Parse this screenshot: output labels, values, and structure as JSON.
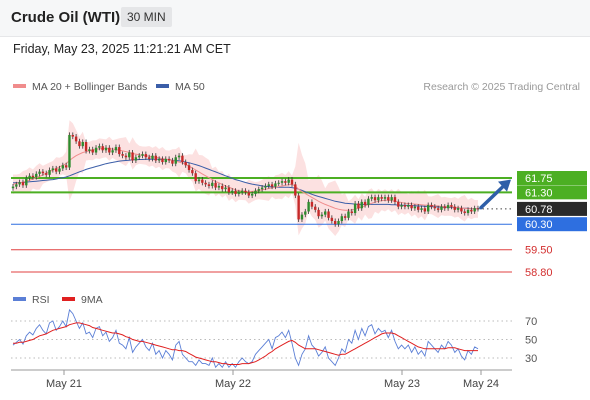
{
  "header": {
    "title": "Crude Oil (WTI)",
    "timeframe": "30 MIN"
  },
  "datetime": "Friday, May 23, 2025 11:21:21 AM CET",
  "legend": [
    {
      "label": "MA 20 + Bollinger Bands",
      "color": "#f08c8c"
    },
    {
      "label": "MA 50",
      "color": "#3b5ea8"
    }
  ],
  "copyright": "Research © 2025 Trading Central",
  "rsi_legend": [
    {
      "label": "RSI",
      "color": "#5b7fd6"
    },
    {
      "label": "9MA",
      "color": "#e02020"
    }
  ],
  "chart_data": [
    {
      "type": "candlestick",
      "title": "Crude Oil (WTI)",
      "timeframe": "30 MIN",
      "ylim": [
        58.5,
        63.4
      ],
      "x_ticks": [
        "May 21",
        "May 22",
        "May 23",
        "May 24"
      ],
      "current_price": 60.78,
      "levels": [
        {
          "value": 61.75,
          "kind": "resistance",
          "color": "#4caf23",
          "label": "61.75"
        },
        {
          "value": 61.3,
          "kind": "resistance",
          "color": "#4caf23",
          "label": "61.30"
        },
        {
          "value": 60.3,
          "kind": "pivot",
          "color": "#2e6fe0",
          "label": "60.30"
        },
        {
          "value": 59.5,
          "kind": "support",
          "color": "#e04040",
          "label": "59.50"
        },
        {
          "value": 58.8,
          "kind": "support",
          "color": "#e04040",
          "label": "58.80"
        }
      ],
      "arrow": {
        "direction": "up",
        "from": 60.82,
        "to": 61.7,
        "color": "#2f5fa8"
      },
      "close": [
        61.48,
        61.55,
        61.62,
        61.52,
        61.75,
        61.82,
        61.78,
        61.88,
        61.95,
        61.9,
        61.85,
        62.0,
        62.05,
        61.95,
        62.05,
        62.15,
        62.08,
        63.1,
        63.05,
        62.9,
        62.75,
        62.88,
        62.6,
        62.65,
        62.55,
        62.7,
        62.75,
        62.62,
        62.7,
        62.55,
        62.62,
        62.72,
        62.5,
        62.45,
        62.4,
        62.55,
        62.3,
        62.4,
        62.45,
        62.5,
        62.4,
        62.35,
        62.45,
        62.3,
        62.35,
        62.25,
        62.35,
        62.3,
        62.2,
        62.4,
        62.45,
        62.25,
        62.15,
        62.0,
        61.9,
        61.65,
        61.7,
        61.6,
        61.55,
        61.5,
        61.6,
        61.45,
        61.5,
        61.4,
        61.45,
        61.3,
        61.35,
        61.25,
        61.3,
        61.35,
        61.3,
        61.2,
        61.25,
        61.35,
        61.4,
        61.45,
        61.5,
        61.55,
        61.48,
        61.58,
        61.6,
        61.65,
        61.6,
        61.7,
        61.55,
        61.2,
        60.45,
        60.6,
        60.7,
        61.0,
        60.85,
        60.75,
        60.55,
        60.6,
        60.7,
        60.5,
        60.4,
        60.3,
        60.4,
        60.55,
        60.5,
        60.7,
        60.65,
        60.95,
        60.8,
        61.0,
        60.9,
        61.1,
        61.15,
        61.05,
        61.15,
        61.1,
        61.15,
        61.05,
        61.15,
        61.0,
        60.85,
        60.9,
        60.85,
        60.9,
        60.8,
        60.85,
        60.75,
        60.8,
        60.7,
        60.9,
        60.85,
        60.8,
        60.75,
        60.85,
        60.8,
        60.9,
        60.85,
        60.75,
        60.8,
        60.7,
        60.65,
        60.75,
        60.7,
        60.8,
        60.78
      ],
      "ma20": [
        61.55,
        61.58,
        61.6,
        61.62,
        61.65,
        61.68,
        61.72,
        61.76,
        61.8,
        61.85,
        61.9,
        61.95,
        62.0,
        62.05,
        62.1,
        62.15,
        62.2,
        62.3,
        62.38,
        62.45,
        62.5,
        62.55,
        62.58,
        62.6,
        62.62,
        62.65,
        62.67,
        62.68,
        62.68,
        62.67,
        62.66,
        62.64,
        62.62,
        62.6,
        62.58,
        62.55,
        62.52,
        62.5,
        62.48,
        62.46,
        62.45,
        62.43,
        62.42,
        62.4,
        62.38,
        62.36,
        62.34,
        62.33,
        62.3,
        62.28,
        62.25,
        62.22,
        62.18,
        62.12,
        62.06,
        62.0,
        61.94,
        61.88,
        61.82,
        61.76,
        61.7,
        61.64,
        61.6,
        61.55,
        61.5,
        61.46,
        61.42,
        61.38,
        61.35,
        61.34,
        61.33,
        61.32,
        61.33,
        61.34,
        61.36,
        61.38,
        61.4,
        61.42,
        61.44,
        61.46,
        61.48,
        61.5,
        61.52,
        61.54,
        61.55,
        61.5,
        61.4,
        61.32,
        61.26,
        61.2,
        61.14,
        61.08,
        61.02,
        60.97,
        60.92,
        60.88,
        60.84,
        60.8,
        60.77,
        60.75,
        60.74,
        60.74,
        60.75,
        60.77,
        60.8,
        60.84,
        60.88,
        60.92,
        60.96,
        60.99,
        61.02,
        61.04,
        61.05,
        61.05,
        61.04,
        61.02,
        61.0,
        60.98,
        60.96,
        60.95,
        60.94,
        60.93,
        60.92,
        60.91,
        60.9,
        60.9,
        60.89,
        60.88,
        60.87,
        60.86,
        60.86,
        60.85,
        60.84,
        60.83,
        60.82,
        60.81,
        60.8,
        60.79,
        60.79,
        60.78,
        60.78
      ],
      "ma50": [
        61.6,
        61.6,
        61.61,
        61.61,
        61.62,
        61.63,
        61.64,
        61.65,
        61.66,
        61.67,
        61.68,
        61.69,
        61.7,
        61.72,
        61.74,
        61.76,
        61.78,
        61.82,
        61.86,
        61.9,
        61.94,
        61.98,
        62.02,
        62.05,
        62.08,
        62.11,
        62.14,
        62.17,
        62.2,
        62.22,
        62.24,
        62.26,
        62.28,
        62.29,
        62.3,
        62.31,
        62.32,
        62.32,
        62.33,
        62.33,
        62.34,
        62.34,
        62.34,
        62.34,
        62.34,
        62.34,
        62.33,
        62.32,
        62.31,
        62.3,
        62.29,
        62.27,
        62.25,
        62.23,
        62.2,
        62.17,
        62.14,
        62.1,
        62.06,
        62.02,
        61.98,
        61.94,
        61.9,
        61.86,
        61.82,
        61.78,
        61.74,
        61.7,
        61.67,
        61.64,
        61.61,
        61.58,
        61.56,
        61.54,
        61.52,
        61.5,
        61.49,
        61.48,
        61.47,
        61.46,
        61.46,
        61.46,
        61.46,
        61.46,
        61.45,
        61.43,
        61.4,
        61.36,
        61.32,
        61.28,
        61.24,
        61.2,
        61.17,
        61.14,
        61.11,
        61.08,
        61.05,
        61.02,
        61.0,
        60.98,
        60.96,
        60.95,
        60.94,
        60.93,
        60.92,
        60.92,
        60.92,
        60.92,
        60.92,
        60.92,
        60.92,
        60.92,
        60.92,
        60.92,
        60.91,
        60.91,
        60.9,
        60.9,
        60.89,
        60.89,
        60.88,
        60.88,
        60.87,
        60.87,
        60.86,
        60.86,
        60.85,
        60.85,
        60.84,
        60.84,
        60.83,
        60.83,
        60.82,
        60.82,
        60.81,
        60.81,
        60.8,
        60.8,
        60.79,
        60.79,
        60.78
      ]
    },
    {
      "type": "line",
      "title": "RSI",
      "ylim": [
        22,
        82
      ],
      "y_ticks": [
        70,
        50,
        30
      ],
      "series": [
        {
          "name": "RSI",
          "color": "#5b7fd6",
          "values": [
            44,
            47,
            50,
            45,
            54,
            58,
            55,
            62,
            66,
            60,
            56,
            68,
            70,
            60,
            64,
            70,
            64,
            82,
            78,
            70,
            62,
            68,
            56,
            58,
            52,
            62,
            64,
            54,
            58,
            48,
            52,
            60,
            46,
            44,
            40,
            52,
            36,
            42,
            46,
            50,
            42,
            38,
            46,
            34,
            38,
            30,
            38,
            34,
            28,
            44,
            48,
            34,
            30,
            26,
            26,
            22,
            28,
            24,
            24,
            22,
            30,
            20,
            24,
            20,
            26,
            20,
            24,
            20,
            26,
            30,
            26,
            24,
            26,
            34,
            38,
            42,
            46,
            50,
            40,
            52,
            54,
            58,
            52,
            60,
            46,
            30,
            22,
            34,
            40,
            54,
            44,
            40,
            32,
            36,
            42,
            30,
            26,
            22,
            30,
            40,
            36,
            50,
            46,
            60,
            50,
            62,
            54,
            64,
            66,
            56,
            62,
            58,
            60,
            52,
            60,
            48,
            40,
            44,
            40,
            44,
            36,
            42,
            34,
            38,
            32,
            48,
            44,
            40,
            36,
            44,
            40,
            48,
            44,
            36,
            40,
            32,
            28,
            38,
            34,
            42,
            40
          ]
        },
        {
          "name": "9MA",
          "color": "#e02020",
          "values": [
            46,
            46,
            47,
            47,
            48,
            49,
            50,
            52,
            54,
            55,
            56,
            58,
            60,
            61,
            62,
            63,
            64,
            66,
            67,
            68,
            68,
            67,
            66,
            65,
            63,
            62,
            61,
            60,
            59,
            58,
            57,
            57,
            56,
            55,
            53,
            52,
            50,
            49,
            48,
            48,
            47,
            46,
            45,
            44,
            43,
            42,
            41,
            40,
            39,
            39,
            38,
            38,
            37,
            35,
            33,
            31,
            30,
            29,
            28,
            27,
            26,
            26,
            25,
            24,
            24,
            23,
            23,
            23,
            23,
            24,
            24,
            24,
            25,
            26,
            28,
            30,
            32,
            35,
            37,
            40,
            42,
            44,
            46,
            48,
            49,
            47,
            44,
            42,
            40,
            40,
            40,
            40,
            39,
            38,
            37,
            36,
            35,
            34,
            33,
            34,
            34,
            36,
            38,
            40,
            42,
            44,
            46,
            48,
            50,
            52,
            54,
            56,
            57,
            57,
            57,
            56,
            54,
            52,
            50,
            48,
            46,
            44,
            42,
            41,
            40,
            40,
            40,
            40,
            40,
            40,
            40,
            41,
            41,
            41,
            40,
            39,
            38,
            38,
            38,
            38,
            38
          ]
        }
      ]
    }
  ]
}
